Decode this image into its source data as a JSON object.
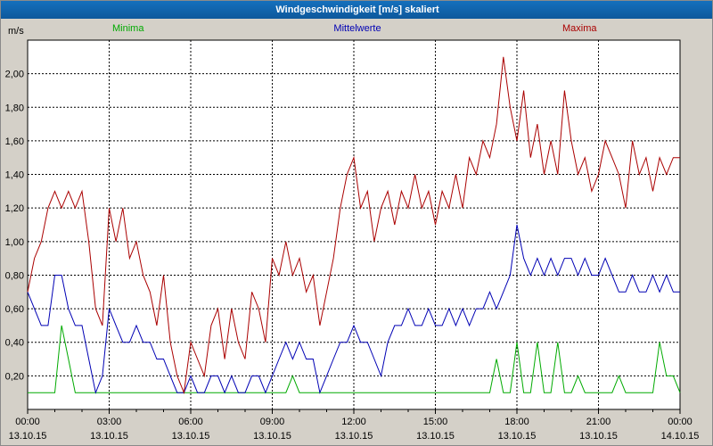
{
  "window": {
    "title": "Windgeschwindigkeit [m/s] skaliert"
  },
  "colors": {
    "titlebar_bg_top": "#1570bd",
    "titlebar_bg_bottom": "#0d589c",
    "titlebar_text": "#ffffff",
    "page_bg": "#d4d0c8",
    "plot_bg": "#ffffff",
    "grid": "#000000",
    "minima": "#00aa00",
    "mittelwerte": "#0000b4",
    "maxima": "#aa0000"
  },
  "chart_data": {
    "type": "line",
    "title": "Windgeschwindigkeit [m/s] skaliert",
    "ylabel": "m/s",
    "ylim": [
      0,
      2.2
    ],
    "ytick_step": 0.2,
    "grid": "dashed",
    "legend_position": "top",
    "yticks": [
      {
        "value": 2.0,
        "label": "2,00"
      },
      {
        "value": 1.8,
        "label": "1,80"
      },
      {
        "value": 1.6,
        "label": "1,60"
      },
      {
        "value": 1.4,
        "label": "1,40"
      },
      {
        "value": 1.2,
        "label": "1,20"
      },
      {
        "value": 1.0,
        "label": "1,00"
      },
      {
        "value": 0.8,
        "label": "0,80"
      },
      {
        "value": 0.6,
        "label": "0,60"
      },
      {
        "value": 0.4,
        "label": "0,40"
      },
      {
        "value": 0.2,
        "label": "0,20"
      }
    ],
    "x_unit": "hours",
    "x_start": 0,
    "x_end": 24,
    "x_step": 0.25,
    "xticks": [
      {
        "hour": 0,
        "time": "00:00",
        "date": "13.10.15"
      },
      {
        "hour": 3,
        "time": "03:00",
        "date": "13.10.15"
      },
      {
        "hour": 6,
        "time": "06:00",
        "date": "13.10.15"
      },
      {
        "hour": 9,
        "time": "09:00",
        "date": "13.10.15"
      },
      {
        "hour": 12,
        "time": "12:00",
        "date": "13.10.15"
      },
      {
        "hour": 15,
        "time": "15:00",
        "date": "13.10.15"
      },
      {
        "hour": 18,
        "time": "18:00",
        "date": "13.10.15"
      },
      {
        "hour": 21,
        "time": "21:00",
        "date": "13.10.15"
      },
      {
        "hour": 24,
        "time": "00:00",
        "date": "14.10.15"
      }
    ],
    "series": [
      {
        "name": "Minima",
        "color": "#00aa00",
        "values": [
          0.1,
          0.1,
          0.1,
          0.1,
          0.1,
          0.5,
          0.3,
          0.1,
          0.1,
          0.1,
          0.1,
          0.1,
          0.1,
          0.1,
          0.1,
          0.1,
          0.1,
          0.1,
          0.1,
          0.1,
          0.1,
          0.1,
          0.1,
          0.1,
          0.1,
          0.1,
          0.1,
          0.1,
          0.1,
          0.1,
          0.1,
          0.1,
          0.1,
          0.1,
          0.1,
          0.1,
          0.1,
          0.1,
          0.1,
          0.2,
          0.1,
          0.1,
          0.1,
          0.1,
          0.1,
          0.1,
          0.1,
          0.1,
          0.1,
          0.1,
          0.1,
          0.1,
          0.1,
          0.1,
          0.1,
          0.1,
          0.1,
          0.1,
          0.1,
          0.1,
          0.1,
          0.1,
          0.1,
          0.1,
          0.1,
          0.1,
          0.1,
          0.1,
          0.1,
          0.3,
          0.1,
          0.1,
          0.4,
          0.1,
          0.1,
          0.4,
          0.1,
          0.1,
          0.4,
          0.1,
          0.1,
          0.2,
          0.1,
          0.1,
          0.1,
          0.1,
          0.1,
          0.2,
          0.1,
          0.1,
          0.1,
          0.1,
          0.1,
          0.4,
          0.2,
          0.2,
          0.1
        ]
      },
      {
        "name": "Mittelwerte",
        "color": "#0000b4",
        "values": [
          0.7,
          0.6,
          0.5,
          0.5,
          0.8,
          0.8,
          0.6,
          0.5,
          0.5,
          0.3,
          0.1,
          0.2,
          0.6,
          0.5,
          0.4,
          0.4,
          0.5,
          0.4,
          0.4,
          0.3,
          0.3,
          0.2,
          0.1,
          0.1,
          0.2,
          0.1,
          0.1,
          0.2,
          0.2,
          0.1,
          0.2,
          0.1,
          0.1,
          0.2,
          0.2,
          0.1,
          0.2,
          0.3,
          0.4,
          0.3,
          0.4,
          0.3,
          0.3,
          0.1,
          0.2,
          0.3,
          0.4,
          0.4,
          0.5,
          0.4,
          0.4,
          0.3,
          0.2,
          0.4,
          0.5,
          0.5,
          0.6,
          0.5,
          0.5,
          0.6,
          0.5,
          0.5,
          0.6,
          0.5,
          0.6,
          0.5,
          0.6,
          0.6,
          0.7,
          0.6,
          0.7,
          0.8,
          1.1,
          0.9,
          0.8,
          0.9,
          0.8,
          0.9,
          0.8,
          0.9,
          0.9,
          0.8,
          0.9,
          0.8,
          0.8,
          0.9,
          0.8,
          0.7,
          0.7,
          0.8,
          0.7,
          0.7,
          0.8,
          0.7,
          0.8,
          0.7,
          0.7
        ]
      },
      {
        "name": "Maxima",
        "color": "#aa0000",
        "values": [
          0.7,
          0.9,
          1.0,
          1.2,
          1.3,
          1.2,
          1.3,
          1.2,
          1.3,
          1.0,
          0.6,
          0.5,
          1.2,
          1.0,
          1.2,
          0.9,
          1.0,
          0.8,
          0.7,
          0.5,
          0.8,
          0.4,
          0.2,
          0.1,
          0.4,
          0.3,
          0.2,
          0.5,
          0.6,
          0.3,
          0.6,
          0.4,
          0.3,
          0.7,
          0.6,
          0.4,
          0.9,
          0.8,
          1.0,
          0.8,
          0.9,
          0.7,
          0.8,
          0.5,
          0.7,
          0.9,
          1.2,
          1.4,
          1.5,
          1.2,
          1.3,
          1.0,
          1.2,
          1.3,
          1.1,
          1.3,
          1.2,
          1.4,
          1.2,
          1.3,
          1.1,
          1.3,
          1.2,
          1.4,
          1.2,
          1.5,
          1.4,
          1.6,
          1.5,
          1.7,
          2.1,
          1.8,
          1.6,
          1.9,
          1.5,
          1.7,
          1.4,
          1.6,
          1.4,
          1.9,
          1.6,
          1.4,
          1.5,
          1.3,
          1.4,
          1.6,
          1.5,
          1.4,
          1.2,
          1.6,
          1.4,
          1.5,
          1.3,
          1.5,
          1.4,
          1.5,
          1.5
        ]
      }
    ]
  }
}
